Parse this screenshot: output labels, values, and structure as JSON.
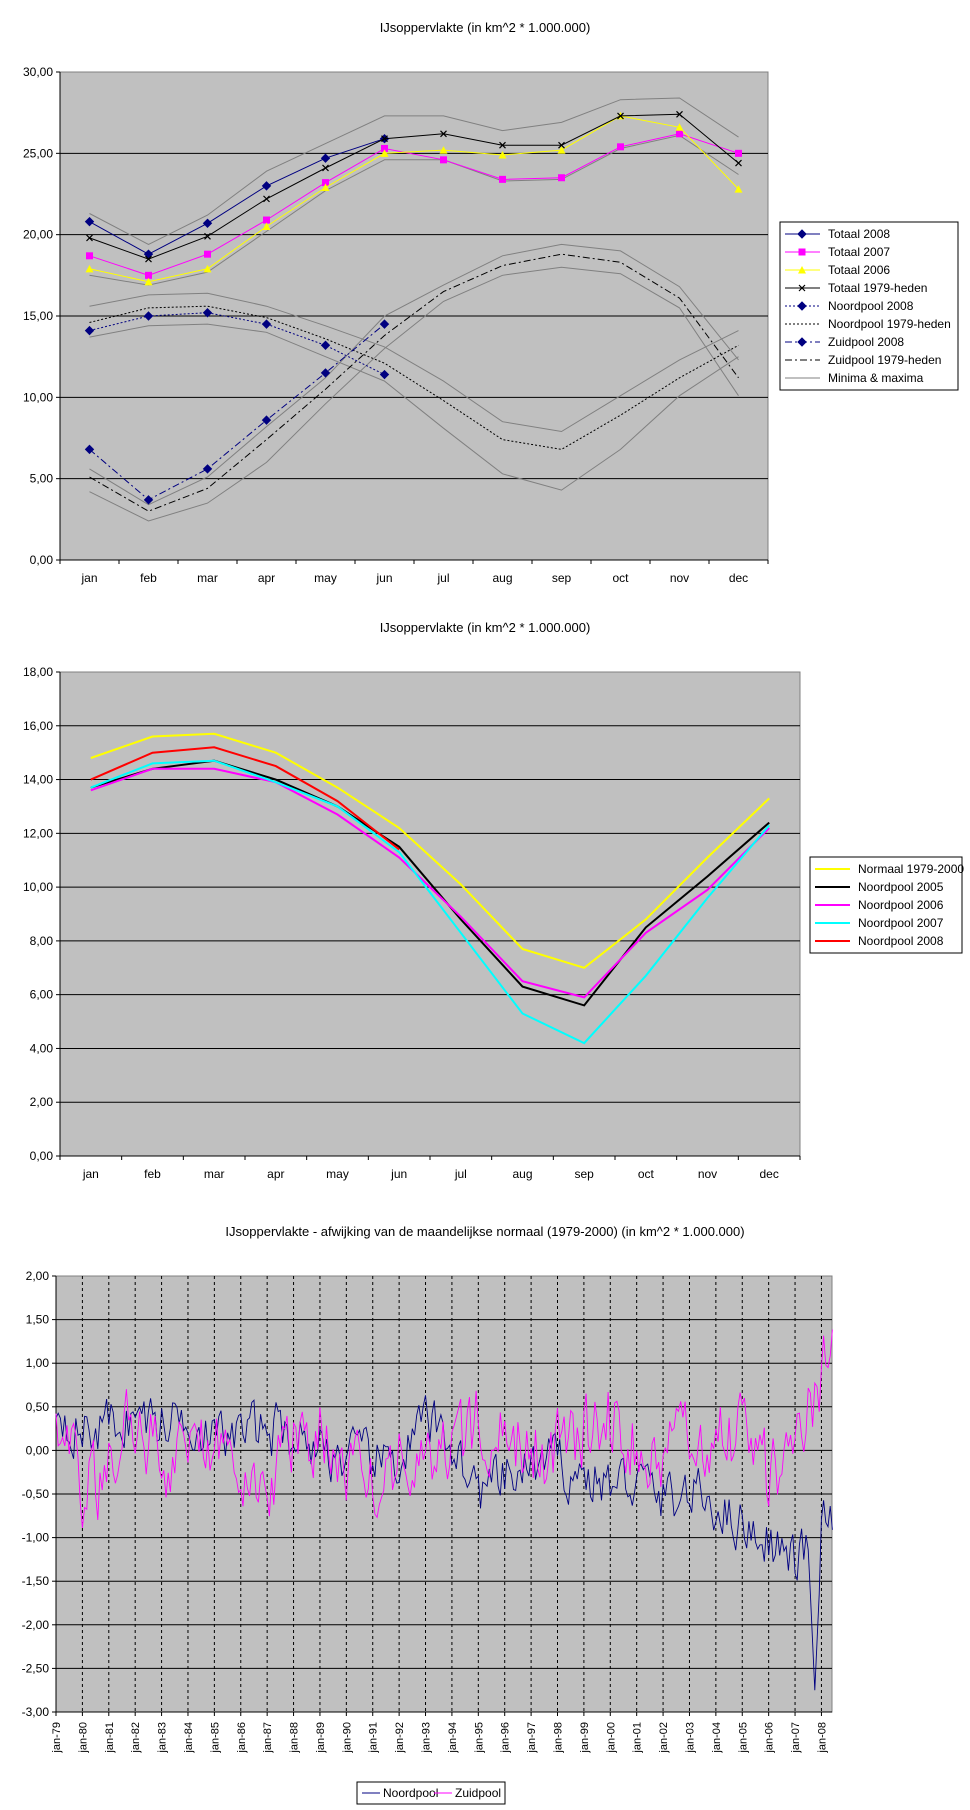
{
  "chart_data": [
    {
      "type": "line",
      "title": "IJsoppervlakte (in km^2 * 1.000.000)",
      "categories": [
        "jan",
        "feb",
        "mar",
        "apr",
        "may",
        "jun",
        "jul",
        "aug",
        "sep",
        "oct",
        "nov",
        "dec"
      ],
      "ylim": [
        0,
        30
      ],
      "yticks": [
        "0,00",
        "5,00",
        "10,00",
        "15,00",
        "20,00",
        "25,00",
        "30,00"
      ],
      "grid": true,
      "legend_position": "right",
      "series": [
        {
          "name": "Totaal 2008",
          "color": "#000080",
          "style": "solid",
          "marker": "diamond",
          "values": [
            20.8,
            18.8,
            20.7,
            23.0,
            24.7,
            25.9,
            null,
            null,
            null,
            null,
            null,
            null
          ]
        },
        {
          "name": "Totaal 2007",
          "color": "#ff00ff",
          "style": "solid",
          "marker": "square",
          "values": [
            18.7,
            17.5,
            18.8,
            20.9,
            23.2,
            25.3,
            24.6,
            23.4,
            23.5,
            25.4,
            26.2,
            25.0
          ]
        },
        {
          "name": "Totaal 2006",
          "color": "#ffff00",
          "style": "solid",
          "marker": "triangle",
          "values": [
            17.9,
            17.1,
            17.9,
            20.5,
            22.9,
            25.0,
            25.2,
            24.9,
            25.2,
            27.3,
            26.6,
            22.8
          ]
        },
        {
          "name": "Totaal 1979-heden",
          "color": "#000000",
          "style": "solid",
          "marker": "x",
          "values": [
            19.8,
            18.5,
            19.9,
            22.2,
            24.1,
            25.9,
            26.2,
            25.5,
            25.5,
            27.3,
            27.4,
            24.4
          ]
        },
        {
          "name": "Noordpool 2008",
          "color": "#000080",
          "style": "dot",
          "marker": "diamond",
          "values": [
            14.1,
            15.0,
            15.2,
            14.5,
            13.2,
            11.4,
            null,
            null,
            null,
            null,
            null,
            null
          ]
        },
        {
          "name": "Noordpool 1979-heden",
          "color": "#000000",
          "style": "dot",
          "marker": "none",
          "values": [
            14.6,
            15.5,
            15.6,
            14.9,
            13.6,
            12.1,
            9.8,
            7.4,
            6.8,
            8.9,
            11.2,
            13.2
          ]
        },
        {
          "name": "Zuidpool 2008",
          "color": "#000080",
          "style": "dashdot",
          "marker": "diamond",
          "values": [
            6.8,
            3.7,
            5.6,
            8.6,
            11.5,
            14.5,
            null,
            null,
            null,
            null,
            null,
            null
          ]
        },
        {
          "name": "Zuidpool 1979-heden",
          "color": "#000000",
          "style": "dashdot",
          "marker": "none",
          "values": [
            5.1,
            3.0,
            4.4,
            7.4,
            10.5,
            13.8,
            16.5,
            18.1,
            18.8,
            18.3,
            16.1,
            11.2
          ]
        },
        {
          "name": "Minima & maxima",
          "color": "#808080",
          "style": "solid",
          "marker": "none",
          "values": [
            21.3,
            19.4,
            21.2,
            23.9,
            25.6,
            27.3,
            27.3,
            26.4,
            26.9,
            28.3,
            28.4,
            26.0
          ]
        },
        {
          "name": "",
          "color": "#808080",
          "style": "solid",
          "marker": "none",
          "values": [
            17.5,
            16.9,
            17.7,
            20.2,
            22.7,
            24.6,
            24.6,
            23.3,
            23.4,
            25.3,
            26.1,
            23.7
          ]
        },
        {
          "name": "",
          "color": "#808080",
          "style": "solid",
          "marker": "none",
          "values": [
            15.6,
            16.3,
            16.4,
            15.6,
            14.4,
            13.1,
            11.0,
            8.5,
            7.9,
            10.1,
            12.3,
            14.1
          ]
        },
        {
          "name": "",
          "color": "#808080",
          "style": "solid",
          "marker": "none",
          "values": [
            13.7,
            14.4,
            14.5,
            14.0,
            12.5,
            11.0,
            8.1,
            5.3,
            4.3,
            6.8,
            10.1,
            12.5
          ]
        },
        {
          "name": "",
          "color": "#808080",
          "style": "solid",
          "marker": "none",
          "values": [
            5.6,
            3.4,
            5.1,
            8.2,
            11.2,
            15.0,
            16.9,
            18.7,
            19.4,
            19.0,
            16.8,
            12.3
          ]
        },
        {
          "name": "",
          "color": "#808080",
          "style": "solid",
          "marker": "none",
          "values": [
            4.2,
            2.4,
            3.5,
            6.0,
            9.6,
            13.0,
            15.9,
            17.5,
            18.0,
            17.6,
            15.5,
            10.1
          ]
        }
      ]
    },
    {
      "type": "line",
      "title": "IJsoppervlakte (in km^2 * 1.000.000)",
      "categories": [
        "jan",
        "feb",
        "mar",
        "apr",
        "may",
        "jun",
        "jul",
        "aug",
        "sep",
        "oct",
        "nov",
        "dec"
      ],
      "ylim": [
        0,
        18
      ],
      "yticks": [
        "0,00",
        "2,00",
        "4,00",
        "6,00",
        "8,00",
        "10,00",
        "12,00",
        "14,00",
        "16,00",
        "18,00"
      ],
      "grid": true,
      "legend_position": "right",
      "series": [
        {
          "name": "Normaal 1979-2000",
          "color": "#ffff00",
          "values": [
            14.8,
            15.6,
            15.7,
            15.0,
            13.7,
            12.2,
            10.1,
            7.7,
            7.0,
            8.8,
            11.1,
            13.3
          ]
        },
        {
          "name": "Noordpool 2005",
          "color": "#000000",
          "values": [
            13.7,
            14.4,
            14.7,
            14.0,
            13.0,
            11.5,
            8.8,
            6.3,
            5.6,
            8.5,
            10.4,
            12.4
          ]
        },
        {
          "name": "Noordpool 2006",
          "color": "#ff00ff",
          "values": [
            13.6,
            14.4,
            14.4,
            13.9,
            12.7,
            11.1,
            8.9,
            6.5,
            5.9,
            8.3,
            9.9,
            12.2
          ]
        },
        {
          "name": "Noordpool 2007",
          "color": "#00ffff",
          "values": [
            13.7,
            14.6,
            14.7,
            13.9,
            13.0,
            11.3,
            8.3,
            5.3,
            4.2,
            6.7,
            9.6,
            12.3
          ]
        },
        {
          "name": "Noordpool 2008",
          "color": "#ff0000",
          "values": [
            14.0,
            15.0,
            15.2,
            14.5,
            13.2,
            11.4,
            null,
            null,
            null,
            null,
            null,
            null
          ]
        }
      ]
    },
    {
      "type": "line",
      "title": "IJsoppervlakte - afwijking van de maandelijkse normaal (1979-2000) (in km^2 * 1.000.000)",
      "x_start": "jan-79",
      "x_end": "mei-08",
      "xtick_labels": [
        "jan-79",
        "jan-80",
        "jan-81",
        "jan-82",
        "jan-83",
        "jan-84",
        "jan-85",
        "jan-86",
        "jan-87",
        "jan-88",
        "jan-89",
        "jan-90",
        "jan-91",
        "jan-92",
        "jan-93",
        "jan-94",
        "jan-95",
        "jan-96",
        "jan-97",
        "jan-98",
        "jan-99",
        "jan-00",
        "jan-01",
        "jan-02",
        "jan-03",
        "jan-04",
        "jan-05",
        "jan-06",
        "jan-07",
        "jan-08"
      ],
      "ylim": [
        -3,
        2
      ],
      "yticks": [
        "-3,00",
        "-2,50",
        "-2,00",
        "-1,50",
        "-1,00",
        "-0,50",
        "0,00",
        "0,50",
        "1,00",
        "1,50",
        "2,00"
      ],
      "grid": true,
      "legend_position": "bottom",
      "series": [
        {
          "name": "Noordpool",
          "color": "#000080",
          "yearly_values": [
            0.55,
            0.2,
            0.3,
            0.4,
            0.3,
            0.45,
            0.1,
            0.2,
            0.25,
            0.2,
            0.05,
            -0.1,
            -0.15,
            -0.1,
            0.3,
            0.1,
            -0.5,
            -0.35,
            -0.2,
            -0.15,
            -0.3,
            -0.4,
            -0.35,
            -0.55,
            -0.5,
            -0.6,
            -0.85,
            -1.0,
            -1.3,
            -0.9,
            -0.6
          ]
        },
        {
          "name": "Zuidpool",
          "color": "#ff00ff",
          "yearly_values": [
            0.5,
            -0.55,
            -0.2,
            0.5,
            -0.1,
            0.05,
            0.1,
            0.0,
            -0.35,
            0.05,
            0.2,
            -0.15,
            -0.15,
            -0.15,
            0.0,
            -0.2,
            0.4,
            0.35,
            0.0,
            0.0,
            0.2,
            0.4,
            0.0,
            -0.3,
            0.3,
            0.2,
            0.15,
            -0.35,
            0.1,
            0.9,
            0.9
          ]
        }
      ]
    }
  ]
}
